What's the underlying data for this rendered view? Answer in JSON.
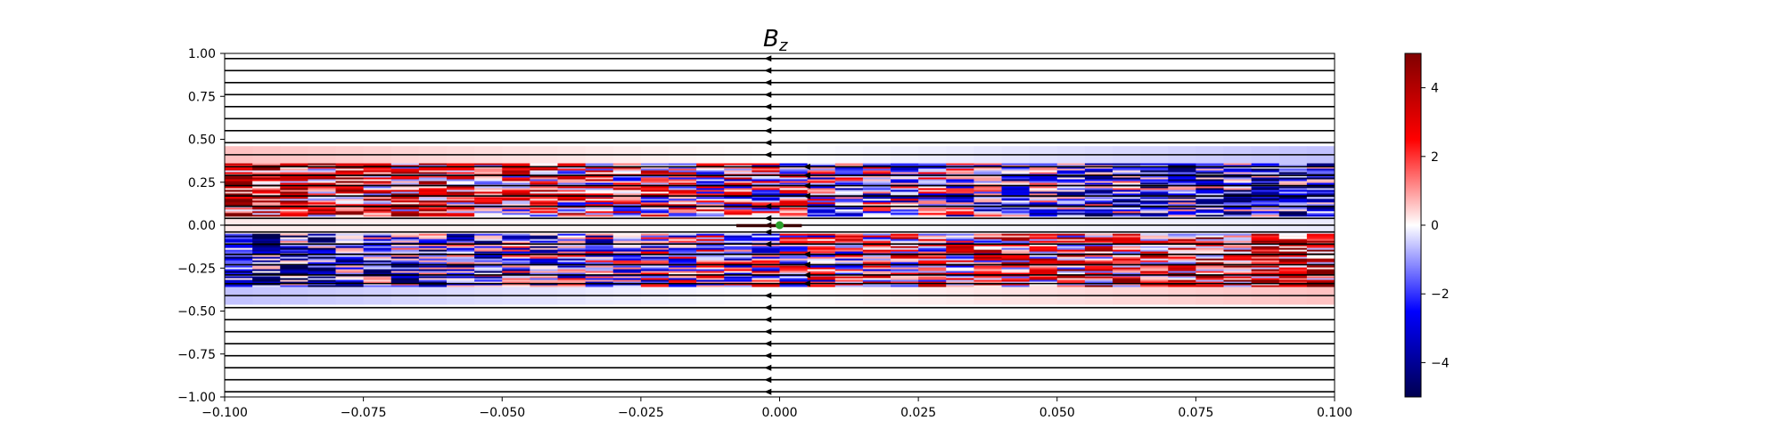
{
  "chart_data": {
    "type": "heatmap",
    "title": "B",
    "title_subscript": "z",
    "xlabel": "",
    "ylabel": "",
    "xlim": [
      -0.1,
      0.1
    ],
    "ylim": [
      -1.0,
      1.0
    ],
    "grid": false,
    "legend": "none",
    "colormap": "seismic",
    "colorbar": {
      "range": [
        -5,
        5
      ],
      "ticks": [
        4,
        2,
        0,
        -2,
        -4
      ],
      "tick_labels": [
        "4",
        "2",
        "0",
        "−2",
        "−4"
      ]
    },
    "x_ticks": [
      -0.1,
      -0.075,
      -0.05,
      -0.025,
      0.0,
      0.025,
      0.05,
      0.075,
      0.1
    ],
    "x_tick_labels": [
      "−0.100",
      "−0.075",
      "−0.050",
      "−0.025",
      "0.000",
      "0.025",
      "0.050",
      "0.075",
      "0.100"
    ],
    "y_ticks": [
      1.0,
      0.75,
      0.5,
      0.25,
      0.0,
      -0.25,
      -0.5,
      -0.75,
      -1.0
    ],
    "y_tick_labels": [
      "1.00",
      "0.75",
      "0.50",
      "0.25",
      "0.00",
      "−0.25",
      "−0.50",
      "−0.75",
      "−1.00"
    ],
    "streamlines": {
      "y_values": [
        0.97,
        0.9,
        0.83,
        0.76,
        0.69,
        0.62,
        0.55,
        0.48,
        0.41,
        0.34,
        0.29,
        0.23,
        0.17,
        0.11,
        0.04,
        0.0,
        -0.04,
        -0.11,
        -0.17,
        -0.23,
        -0.29,
        -0.34,
        -0.41,
        -0.48,
        -0.55,
        -0.62,
        -0.69,
        -0.76,
        -0.83,
        -0.9,
        -0.97
      ],
      "direction": "negative-x",
      "color": "#000000"
    },
    "marker": {
      "x": 0.0,
      "y": 0.0,
      "color": "#2ca02c"
    },
    "central_segment": {
      "x": [
        -0.0078,
        0.004
      ],
      "y": 0.0
    },
    "field_bands": [
      {
        "y_range": [
          0.36,
          0.46
        ],
        "left_value": 0.6,
        "right_value": -0.6
      },
      {
        "y_range": [
          0.05,
          0.36
        ],
        "pattern": "mixed",
        "left_value": 2.5,
        "right_value": -2.5
      },
      {
        "y_range": [
          -0.05,
          0.05
        ],
        "left_value": 0.2,
        "right_value": -0.2
      },
      {
        "y_range": [
          -0.36,
          -0.05
        ],
        "pattern": "mixed",
        "left_value": -2.5,
        "right_value": 2.5
      },
      {
        "y_range": [
          -0.46,
          -0.36
        ],
        "left_value": -0.6,
        "right_value": 0.6
      }
    ]
  }
}
